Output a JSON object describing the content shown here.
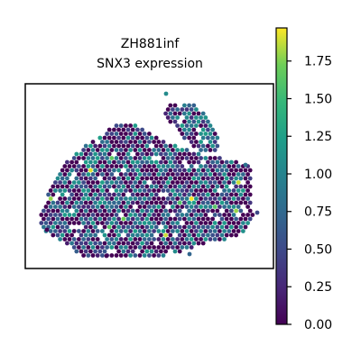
{
  "title_line1": "ZH881inf",
  "title_line2": "SNX3 expression",
  "colorbar": {
    "colormap": "viridis",
    "min": 0.0,
    "max": 1.97,
    "ticks": [
      "0.00",
      "0.25",
      "0.50",
      "0.75",
      "1.00",
      "1.25",
      "1.50",
      "1.75"
    ]
  },
  "chart_data": {
    "type": "scatter",
    "title": "ZH881inf\nSNX3 expression",
    "xlabel": "",
    "ylabel": "",
    "value_label": "SNX3 expression",
    "value_range": [
      0.0,
      1.97
    ],
    "axes_ticks": "none",
    "grid": false,
    "legend": "colorbar-right",
    "note": "spatial spot map; each hexagonal spot is colored by SNX3 expression",
    "distribution": {
      "zero_fraction": 0.4,
      "median_nonzero": 0.7,
      "max": 1.97
    }
  }
}
